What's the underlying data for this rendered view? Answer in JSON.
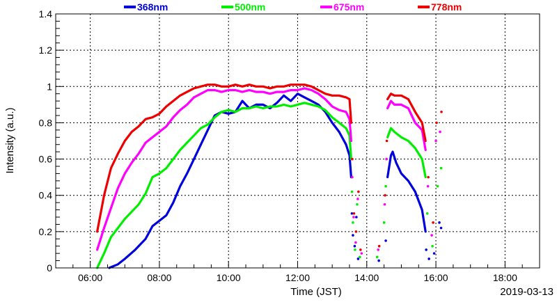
{
  "chart_data": {
    "type": "scatter",
    "xlabel": "Time (JST)",
    "ylabel": "Intensity (a.u.)",
    "date": "2019-03-13",
    "xlim": [
      5.0,
      19.0
    ],
    "ylim": [
      0,
      1.4
    ],
    "grid": true,
    "legend_position": "top",
    "x_ticks": [
      {
        "value": 6,
        "label": "06:00"
      },
      {
        "value": 8,
        "label": "08:00"
      },
      {
        "value": 10,
        "label": "10:00"
      },
      {
        "value": 12,
        "label": "12:00"
      },
      {
        "value": 14,
        "label": "14:00"
      },
      {
        "value": 16,
        "label": "16:00"
      },
      {
        "value": 18,
        "label": "18:00"
      }
    ],
    "y_ticks": [
      {
        "value": 0,
        "label": "0"
      },
      {
        "value": 0.2,
        "label": "0.2"
      },
      {
        "value": 0.4,
        "label": "0.4"
      },
      {
        "value": 0.6,
        "label": "0.6"
      },
      {
        "value": 0.8,
        "label": "0.8"
      },
      {
        "value": 1.0,
        "label": "1"
      },
      {
        "value": 1.2,
        "label": "1.2"
      },
      {
        "value": 1.4,
        "label": "1.4"
      }
    ],
    "series": [
      {
        "name": "368nm",
        "color": "#0000dd",
        "segments": [
          [
            [
              6.55,
              0.0
            ],
            [
              6.8,
              0.02
            ],
            [
              7.0,
              0.05
            ],
            [
              7.3,
              0.1
            ],
            [
              7.6,
              0.16
            ],
            [
              7.8,
              0.23
            ],
            [
              8.0,
              0.26
            ],
            [
              8.2,
              0.29
            ],
            [
              8.4,
              0.36
            ],
            [
              8.6,
              0.45
            ],
            [
              8.8,
              0.52
            ],
            [
              9.0,
              0.6
            ],
            [
              9.2,
              0.68
            ],
            [
              9.4,
              0.76
            ],
            [
              9.6,
              0.84
            ],
            [
              9.8,
              0.86
            ],
            [
              10.0,
              0.85
            ],
            [
              10.2,
              0.86
            ],
            [
              10.4,
              0.92
            ],
            [
              10.6,
              0.88
            ],
            [
              10.8,
              0.9
            ],
            [
              11.0,
              0.9
            ],
            [
              11.2,
              0.88
            ],
            [
              11.4,
              0.91
            ],
            [
              11.6,
              0.95
            ],
            [
              11.8,
              0.92
            ],
            [
              12.0,
              0.96
            ],
            [
              12.2,
              0.94
            ],
            [
              12.4,
              0.92
            ],
            [
              12.6,
              0.9
            ],
            [
              12.8,
              0.86
            ],
            [
              13.0,
              0.8
            ],
            [
              13.2,
              0.75
            ],
            [
              13.4,
              0.68
            ],
            [
              13.5,
              0.62
            ],
            [
              13.55,
              0.5
            ]
          ],
          [
            [
              14.6,
              0.5
            ],
            [
              14.7,
              0.62
            ],
            [
              14.75,
              0.64
            ],
            [
              14.85,
              0.58
            ],
            [
              15.0,
              0.52
            ],
            [
              15.2,
              0.48
            ],
            [
              15.4,
              0.42
            ],
            [
              15.6,
              0.32
            ],
            [
              15.7,
              0.2
            ]
          ]
        ]
      },
      {
        "name": "500nm",
        "color": "#00ee00",
        "segments": [
          [
            [
              6.2,
              0.0
            ],
            [
              6.4,
              0.08
            ],
            [
              6.6,
              0.17
            ],
            [
              6.8,
              0.22
            ],
            [
              7.0,
              0.27
            ],
            [
              7.2,
              0.31
            ],
            [
              7.4,
              0.35
            ],
            [
              7.6,
              0.41
            ],
            [
              7.8,
              0.5
            ],
            [
              8.0,
              0.52
            ],
            [
              8.2,
              0.55
            ],
            [
              8.4,
              0.6
            ],
            [
              8.6,
              0.65
            ],
            [
              8.8,
              0.69
            ],
            [
              9.0,
              0.73
            ],
            [
              9.2,
              0.77
            ],
            [
              9.4,
              0.79
            ],
            [
              9.6,
              0.83
            ],
            [
              9.8,
              0.86
            ],
            [
              10.0,
              0.87
            ],
            [
              10.2,
              0.86
            ],
            [
              10.4,
              0.88
            ],
            [
              10.6,
              0.88
            ],
            [
              10.8,
              0.89
            ],
            [
              11.0,
              0.88
            ],
            [
              11.2,
              0.89
            ],
            [
              11.4,
              0.89
            ],
            [
              11.6,
              0.9
            ],
            [
              11.8,
              0.89
            ],
            [
              12.0,
              0.9
            ],
            [
              12.2,
              0.91
            ],
            [
              12.4,
              0.9
            ],
            [
              12.6,
              0.89
            ],
            [
              12.8,
              0.87
            ],
            [
              13.0,
              0.83
            ],
            [
              13.2,
              0.8
            ],
            [
              13.4,
              0.77
            ],
            [
              13.5,
              0.73
            ],
            [
              13.55,
              0.6
            ]
          ],
          [
            [
              14.6,
              0.72
            ],
            [
              14.7,
              0.77
            ],
            [
              14.8,
              0.75
            ],
            [
              15.0,
              0.72
            ],
            [
              15.2,
              0.7
            ],
            [
              15.4,
              0.66
            ],
            [
              15.6,
              0.6
            ],
            [
              15.7,
              0.5
            ]
          ]
        ]
      },
      {
        "name": "675nm",
        "color": "#ff00ff",
        "segments": [
          [
            [
              6.2,
              0.1
            ],
            [
              6.4,
              0.22
            ],
            [
              6.6,
              0.33
            ],
            [
              6.8,
              0.44
            ],
            [
              7.0,
              0.52
            ],
            [
              7.2,
              0.58
            ],
            [
              7.4,
              0.63
            ],
            [
              7.6,
              0.69
            ],
            [
              7.8,
              0.72
            ],
            [
              8.0,
              0.75
            ],
            [
              8.2,
              0.78
            ],
            [
              8.4,
              0.83
            ],
            [
              8.6,
              0.87
            ],
            [
              8.8,
              0.9
            ],
            [
              9.0,
              0.94
            ],
            [
              9.2,
              0.96
            ],
            [
              9.4,
              0.98
            ],
            [
              9.6,
              0.98
            ],
            [
              9.8,
              0.97
            ],
            [
              10.0,
              0.98
            ],
            [
              10.2,
              0.98
            ],
            [
              10.4,
              0.97
            ],
            [
              10.6,
              0.98
            ],
            [
              10.8,
              0.97
            ],
            [
              11.0,
              0.97
            ],
            [
              11.2,
              0.96
            ],
            [
              11.4,
              0.97
            ],
            [
              11.6,
              0.97
            ],
            [
              11.8,
              0.98
            ],
            [
              12.0,
              0.98
            ],
            [
              12.2,
              0.99
            ],
            [
              12.4,
              0.98
            ],
            [
              12.6,
              0.96
            ],
            [
              12.8,
              0.93
            ],
            [
              13.0,
              0.89
            ],
            [
              13.2,
              0.87
            ],
            [
              13.4,
              0.86
            ],
            [
              13.5,
              0.82
            ],
            [
              13.55,
              0.7
            ]
          ],
          [
            [
              14.6,
              0.88
            ],
            [
              14.7,
              0.92
            ],
            [
              14.8,
              0.9
            ],
            [
              15.0,
              0.9
            ],
            [
              15.2,
              0.88
            ],
            [
              15.4,
              0.8
            ],
            [
              15.6,
              0.76
            ],
            [
              15.7,
              0.65
            ]
          ]
        ]
      },
      {
        "name": "778nm",
        "color": "#ee0000",
        "segments": [
          [
            [
              6.2,
              0.2
            ],
            [
              6.4,
              0.4
            ],
            [
              6.6,
              0.55
            ],
            [
              6.8,
              0.63
            ],
            [
              7.0,
              0.7
            ],
            [
              7.2,
              0.75
            ],
            [
              7.4,
              0.78
            ],
            [
              7.6,
              0.82
            ],
            [
              7.8,
              0.83
            ],
            [
              8.0,
              0.85
            ],
            [
              8.2,
              0.89
            ],
            [
              8.4,
              0.92
            ],
            [
              8.6,
              0.95
            ],
            [
              8.8,
              0.97
            ],
            [
              9.0,
              0.99
            ],
            [
              9.2,
              1.0
            ],
            [
              9.4,
              1.01
            ],
            [
              9.6,
              1.01
            ],
            [
              9.8,
              1.0
            ],
            [
              10.0,
              1.0
            ],
            [
              10.2,
              1.01
            ],
            [
              10.4,
              1.0
            ],
            [
              10.6,
              1.01
            ],
            [
              10.8,
              1.0
            ],
            [
              11.0,
              1.0
            ],
            [
              11.2,
              0.99
            ],
            [
              11.4,
              1.0
            ],
            [
              11.6,
              1.0
            ],
            [
              11.8,
              1.01
            ],
            [
              12.0,
              1.01
            ],
            [
              12.2,
              1.01
            ],
            [
              12.4,
              1.0
            ],
            [
              12.6,
              0.98
            ],
            [
              12.8,
              0.96
            ],
            [
              13.0,
              0.95
            ],
            [
              13.2,
              0.95
            ],
            [
              13.4,
              0.94
            ],
            [
              13.5,
              0.93
            ],
            [
              13.55,
              0.8
            ]
          ],
          [
            [
              14.6,
              0.93
            ],
            [
              14.7,
              0.96
            ],
            [
              14.8,
              0.95
            ],
            [
              15.0,
              0.95
            ],
            [
              15.2,
              0.93
            ],
            [
              15.4,
              0.86
            ],
            [
              15.6,
              0.8
            ],
            [
              15.7,
              0.7
            ]
          ]
        ]
      }
    ],
    "scatter_points": [
      {
        "series": 0,
        "x": 13.57,
        "y": 0.3
      },
      {
        "series": 0,
        "x": 13.6,
        "y": 0.18
      },
      {
        "series": 0,
        "x": 13.65,
        "y": 0.12
      },
      {
        "series": 0,
        "x": 13.7,
        "y": 0.28
      },
      {
        "series": 0,
        "x": 13.75,
        "y": 0.05
      },
      {
        "series": 0,
        "x": 14.35,
        "y": 0.04
      },
      {
        "series": 0,
        "x": 14.55,
        "y": 0.15
      },
      {
        "series": 0,
        "x": 15.72,
        "y": 0.1
      },
      {
        "series": 0,
        "x": 15.8,
        "y": 0.05
      },
      {
        "series": 0,
        "x": 15.95,
        "y": 0.08
      },
      {
        "series": 0,
        "x": 16.1,
        "y": 0.25
      },
      {
        "series": 0,
        "x": 16.15,
        "y": 0.22
      },
      {
        "series": 1,
        "x": 13.57,
        "y": 0.42
      },
      {
        "series": 1,
        "x": 13.6,
        "y": 0.25
      },
      {
        "series": 1,
        "x": 13.66,
        "y": 0.1
      },
      {
        "series": 1,
        "x": 13.72,
        "y": 0.35
      },
      {
        "series": 1,
        "x": 13.8,
        "y": 0.06
      },
      {
        "series": 1,
        "x": 14.3,
        "y": 0.06
      },
      {
        "series": 1,
        "x": 14.5,
        "y": 0.25
      },
      {
        "series": 1,
        "x": 14.55,
        "y": 0.45
      },
      {
        "series": 1,
        "x": 15.75,
        "y": 0.3
      },
      {
        "series": 1,
        "x": 15.9,
        "y": 0.12
      },
      {
        "series": 1,
        "x": 16.05,
        "y": 0.45
      },
      {
        "series": 1,
        "x": 16.15,
        "y": 0.55
      },
      {
        "series": 2,
        "x": 13.58,
        "y": 0.5
      },
      {
        "series": 2,
        "x": 13.62,
        "y": 0.28
      },
      {
        "series": 2,
        "x": 13.68,
        "y": 0.14
      },
      {
        "series": 2,
        "x": 13.74,
        "y": 0.38
      },
      {
        "series": 2,
        "x": 13.85,
        "y": 0.08
      },
      {
        "series": 2,
        "x": 14.33,
        "y": 0.1
      },
      {
        "series": 2,
        "x": 14.52,
        "y": 0.35
      },
      {
        "series": 2,
        "x": 14.57,
        "y": 0.6
      },
      {
        "series": 2,
        "x": 15.77,
        "y": 0.45
      },
      {
        "series": 2,
        "x": 15.88,
        "y": 0.18
      },
      {
        "series": 2,
        "x": 16.0,
        "y": 0.7
      },
      {
        "series": 2,
        "x": 16.12,
        "y": 0.75
      },
      {
        "series": 3,
        "x": 13.58,
        "y": 0.6
      },
      {
        "series": 3,
        "x": 13.63,
        "y": 0.3
      },
      {
        "series": 3,
        "x": 13.69,
        "y": 0.2
      },
      {
        "series": 3,
        "x": 13.76,
        "y": 0.42
      },
      {
        "series": 3,
        "x": 13.82,
        "y": 0.1
      },
      {
        "series": 3,
        "x": 14.36,
        "y": 0.12
      },
      {
        "series": 3,
        "x": 14.53,
        "y": 0.4
      },
      {
        "series": 3,
        "x": 14.58,
        "y": 0.7
      },
      {
        "series": 3,
        "x": 15.78,
        "y": 0.5
      },
      {
        "series": 3,
        "x": 15.92,
        "y": 0.25
      },
      {
        "series": 3,
        "x": 16.02,
        "y": 0.8
      },
      {
        "series": 3,
        "x": 16.16,
        "y": 0.86
      }
    ]
  }
}
